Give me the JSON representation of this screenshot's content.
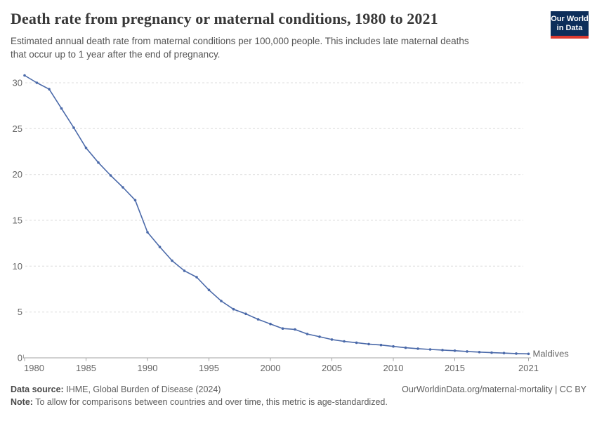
{
  "header": {
    "title": "Death rate from pregnancy or maternal conditions, 1980 to 2021",
    "subtitle_line1": "Estimated annual death rate from maternal conditions per 100,000 people. This includes late maternal deaths",
    "subtitle_line2": "that occur up to 1 year after the end of pregnancy."
  },
  "logo": {
    "line1": "Our World",
    "line2": "in Data",
    "bg_color": "#0d2e5a",
    "bar_color": "#dc3a2f"
  },
  "chart_data": {
    "type": "line",
    "title": "Death rate from pregnancy or maternal conditions, 1980 to 2021",
    "xlabel": "",
    "ylabel": "",
    "xlim": [
      1980,
      2021
    ],
    "ylim": [
      0,
      31
    ],
    "xticks": [
      1980,
      1985,
      1990,
      1995,
      2000,
      2005,
      2010,
      2015,
      2021
    ],
    "yticks": [
      0,
      5,
      10,
      15,
      20,
      25,
      30
    ],
    "grid": "horizontal-dashed",
    "grid_color": "#dcdcdc",
    "axis_color": "#a3a3a3",
    "tick_label_color": "#666666",
    "x": [
      1980,
      1981,
      1982,
      1983,
      1984,
      1985,
      1986,
      1987,
      1988,
      1989,
      1990,
      1991,
      1992,
      1993,
      1994,
      1995,
      1996,
      1997,
      1998,
      1999,
      2000,
      2001,
      2002,
      2003,
      2004,
      2005,
      2006,
      2007,
      2008,
      2009,
      2010,
      2011,
      2012,
      2013,
      2014,
      2015,
      2016,
      2017,
      2018,
      2019,
      2020,
      2021
    ],
    "series": [
      {
        "name": "Maldives",
        "color": "#4a69a9",
        "values": [
          30.8,
          30.0,
          29.3,
          27.2,
          25.1,
          22.9,
          21.3,
          19.9,
          18.6,
          17.2,
          13.7,
          12.1,
          10.6,
          9.5,
          8.8,
          7.4,
          6.2,
          5.3,
          4.8,
          4.2,
          3.7,
          3.2,
          3.1,
          2.6,
          2.3,
          2.0,
          1.8,
          1.65,
          1.5,
          1.4,
          1.25,
          1.1,
          1.0,
          0.92,
          0.85,
          0.78,
          0.7,
          0.63,
          0.57,
          0.52,
          0.47,
          0.44
        ]
      }
    ],
    "entity_label": "Maldives"
  },
  "footer": {
    "source_label": "Data source:",
    "source_text": "IHME, Global Burden of Disease (2024)",
    "link": "OurWorldinData.org/maternal-mortality | CC BY",
    "note_label": "Note:",
    "note_text": "To allow for comparisons between countries and over time, this metric is age-standardized."
  }
}
